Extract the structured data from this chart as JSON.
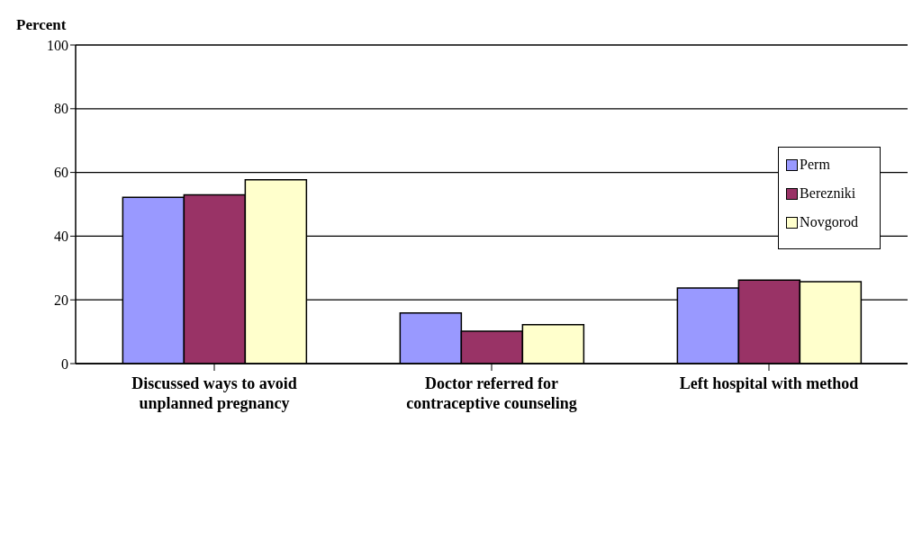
{
  "chart_data": {
    "type": "bar",
    "ylabel": "Percent",
    "categories": [
      "Discussed ways to avoid unplanned pregnancy",
      "Doctor referred for contraceptive counseling",
      "Left hospital with method"
    ],
    "series": [
      {
        "name": "Perm",
        "color": "#9999ff",
        "values": [
          52.2,
          15.9,
          23.7
        ]
      },
      {
        "name": "Berezniki",
        "color": "#993366",
        "values": [
          53.0,
          10.2,
          26.2
        ]
      },
      {
        "name": "Novgorod",
        "color": "#ffffcc",
        "values": [
          57.7,
          12.2,
          25.7
        ]
      }
    ],
    "ylim": [
      0,
      100
    ],
    "yticks": [
      0,
      20,
      40,
      60,
      80,
      100
    ],
    "grid": "y",
    "legend": "top right"
  }
}
